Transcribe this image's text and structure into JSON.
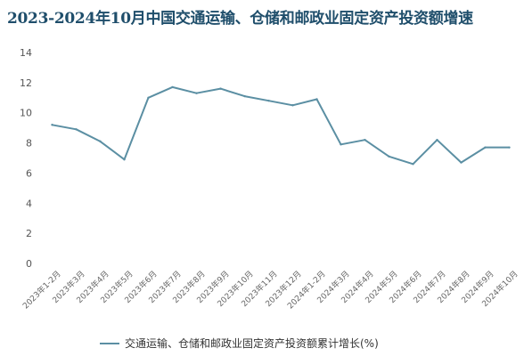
{
  "title": "2023-2024年10月中国交通运输、仓储和邮政业固定资产投资额增速",
  "chart_data": {
    "type": "line",
    "title": "2023-2024年10月中国交通运输、仓储和邮政业固定资产投资额增速",
    "x": [
      "2023年1-2月",
      "2023年3月",
      "2023年4月",
      "2023年5月",
      "2023年6月",
      "2023年7月",
      "2023年8月",
      "2023年9月",
      "2023年10月",
      "2023年11月",
      "2023年12月",
      "2024年1-2月",
      "2024年3月",
      "2024年4月",
      "2024年5月",
      "2024年6月",
      "2024年7月",
      "2024年8月",
      "2024年9月",
      "2024年10月"
    ],
    "series": [
      {
        "name": "交通运输、仓储和邮政业固定资产投资额累计增长(%)",
        "values": [
          9.2,
          8.9,
          8.1,
          6.9,
          11.0,
          11.7,
          11.3,
          11.6,
          11.1,
          10.8,
          10.5,
          10.9,
          7.9,
          8.2,
          7.1,
          6.6,
          8.2,
          6.7,
          7.7,
          7.7
        ]
      }
    ],
    "yticks": [
      0,
      2,
      4,
      6,
      8,
      10,
      12,
      14
    ],
    "ylim": [
      0,
      14
    ],
    "grid": false,
    "legend": "bottom",
    "color": "#5b8fa3"
  }
}
